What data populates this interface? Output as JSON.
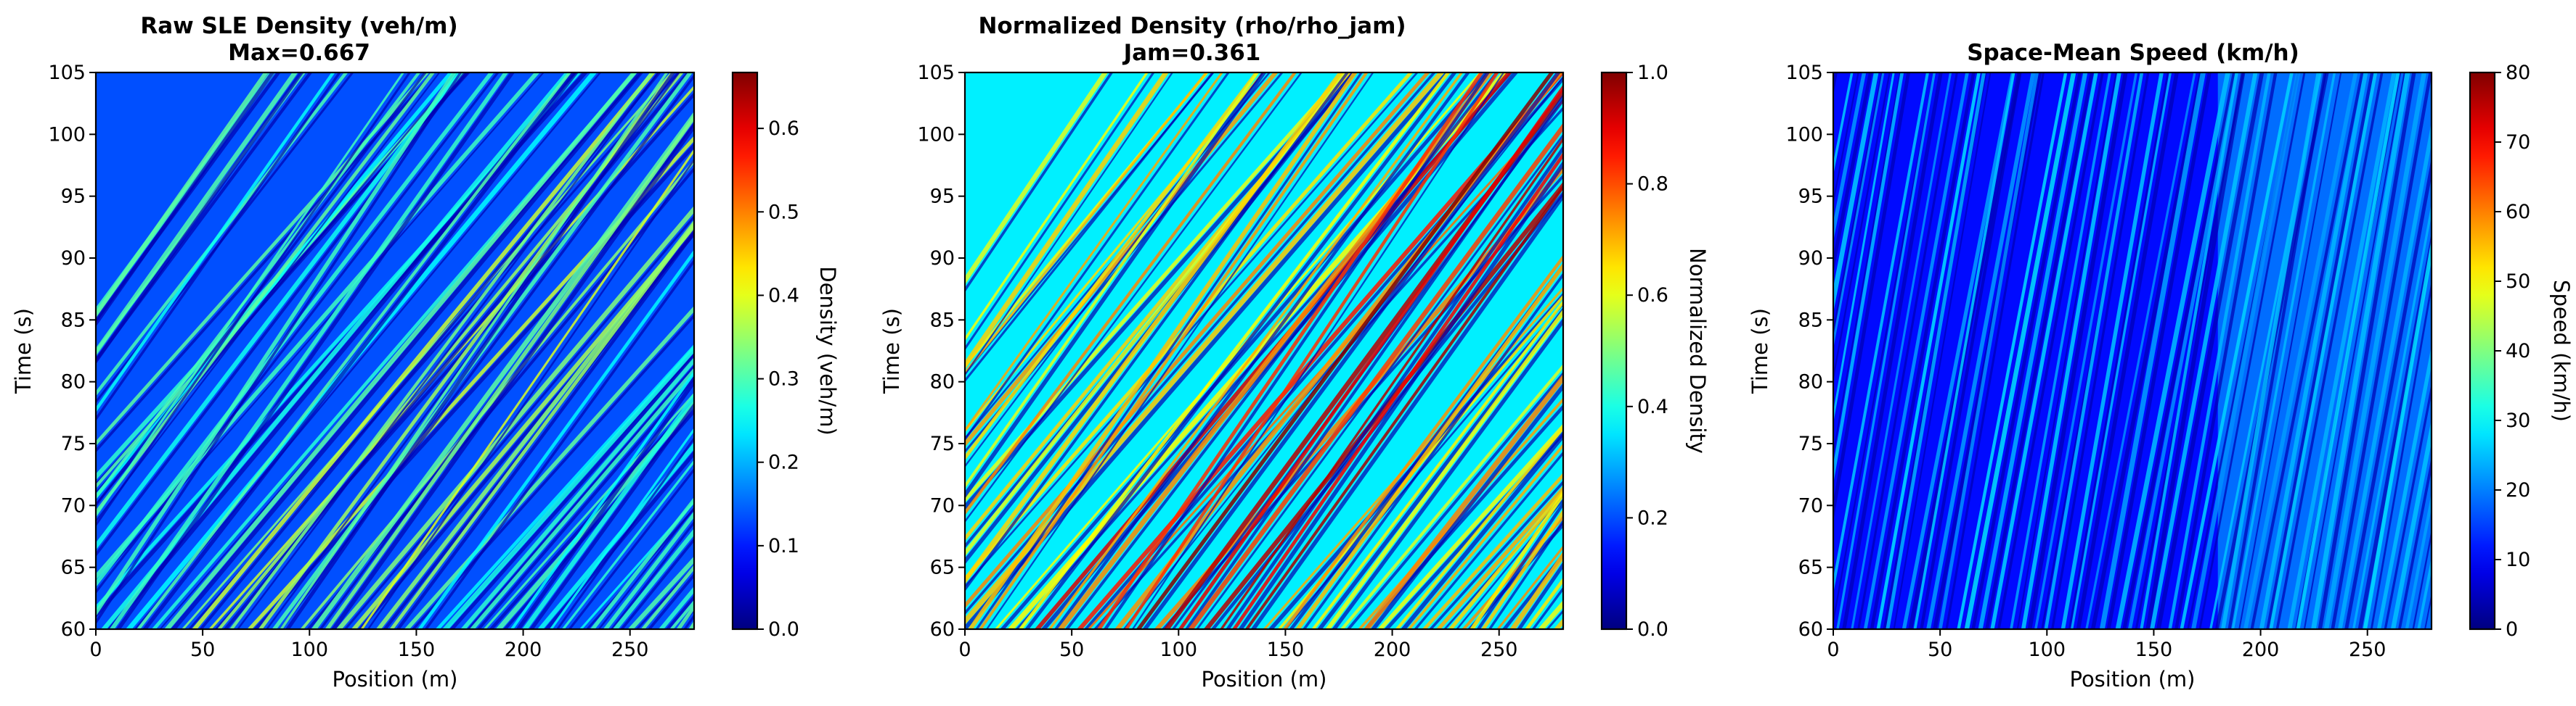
{
  "chart_data": [
    {
      "type": "heatmap",
      "title": "Raw SLE Density (veh/m)",
      "subtitle": "Max=0.667",
      "xlabel": "Position (m)",
      "ylabel": "Time (s)",
      "xlim": [
        0,
        280
      ],
      "ylim": [
        60,
        105
      ],
      "xticks": [
        0,
        50,
        100,
        150,
        200,
        250
      ],
      "yticks": [
        60,
        65,
        70,
        75,
        80,
        85,
        90,
        95,
        100,
        105
      ],
      "colormap": "jet",
      "colorbar": {
        "label": "Density (veh/m)",
        "range": [
          0,
          0.667
        ],
        "ticks": [
          0.0,
          0.1,
          0.2,
          0.3,
          0.4,
          0.5,
          0.6
        ],
        "tick_labels": [
          "0.0",
          "0.1",
          "0.2",
          "0.3",
          "0.4",
          "0.5",
          "0.6"
        ]
      },
      "pattern": {
        "description": "diagonal stripes",
        "typical_value": 0.15,
        "stripe_peak": 0.32,
        "dense_region_x": [
          150,
          200
        ],
        "dense_region_peak": 0.42
      }
    },
    {
      "type": "heatmap",
      "title": "Normalized Density (rho/rho_jam)",
      "subtitle": "Jam=0.361",
      "xlabel": "Position (m)",
      "ylabel": "Time (s)",
      "xlim": [
        0,
        280
      ],
      "ylim": [
        60,
        105
      ],
      "xticks": [
        0,
        50,
        100,
        150,
        200,
        250
      ],
      "yticks": [
        60,
        65,
        70,
        75,
        80,
        85,
        90,
        95,
        100,
        105
      ],
      "colormap": "jet",
      "colorbar": {
        "label": "Normalized Density",
        "range": [
          0,
          1
        ],
        "ticks": [
          0.0,
          0.2,
          0.4,
          0.6,
          0.8,
          1.0
        ],
        "tick_labels": [
          "0.0",
          "0.2",
          "0.4",
          "0.6",
          "0.8",
          "1.0"
        ]
      },
      "pattern": {
        "description": "diagonal stripes",
        "typical_value": 0.4,
        "stripe_peak": 0.75,
        "dense_region_x": [
          140,
          190
        ],
        "dense_region_peak": 1.0
      }
    },
    {
      "type": "heatmap",
      "title": "Space-Mean Speed (km/h)",
      "subtitle": "",
      "xlabel": "Position (m)",
      "ylabel": "Time (s)",
      "xlim": [
        0,
        280
      ],
      "ylim": [
        60,
        105
      ],
      "xticks": [
        0,
        50,
        100,
        150,
        200,
        250
      ],
      "yticks": [
        60,
        65,
        70,
        75,
        80,
        85,
        90,
        95,
        100,
        105
      ],
      "colormap": "jet",
      "colorbar": {
        "label": "Speed (km/h)",
        "range": [
          0,
          80
        ],
        "ticks": [
          0,
          10,
          20,
          30,
          40,
          50,
          60,
          70,
          80
        ],
        "tick_labels": [
          "0",
          "10",
          "20",
          "30",
          "40",
          "50",
          "60",
          "70",
          "80"
        ]
      },
      "pattern": {
        "description": "diagonal stripes",
        "typical_value": 12,
        "stripe_peak": 28,
        "bright_region_x": [
          180,
          280
        ],
        "bright_region_value": 25
      }
    }
  ]
}
